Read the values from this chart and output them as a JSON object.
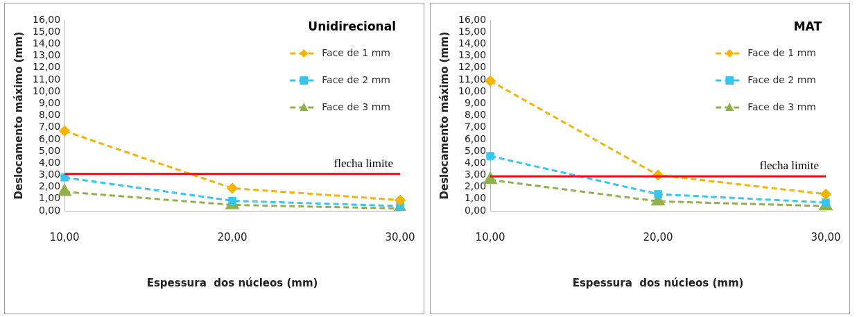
{
  "chart_data": [
    {
      "type": "line",
      "title": "Unidirecional",
      "xlabel": "Espessura  dos núcleos (mm)",
      "ylabel": "Deslocamento máximo (mm)",
      "categories": [
        "10,00",
        "20,00",
        "30,00"
      ],
      "series": [
        {
          "name": "Face de 1 mm",
          "color": "#f5b400",
          "marker": "diamond",
          "values": [
            6.7,
            1.9,
            0.9
          ]
        },
        {
          "name": "Face de 2 mm",
          "color": "#33c6f0",
          "marker": "square",
          "values": [
            2.8,
            0.85,
            0.4
          ]
        },
        {
          "name": "Face de 3 mm",
          "color": "#8fb04a",
          "marker": "triangle",
          "values": [
            1.6,
            0.5,
            0.2
          ]
        }
      ],
      "ylim": [
        0,
        16
      ],
      "yticks": [
        {
          "value": 0,
          "label": "0,00"
        },
        {
          "value": 1,
          "label": "1,00"
        },
        {
          "value": 2,
          "label": "2,00"
        },
        {
          "value": 3,
          "label": "3,00"
        },
        {
          "value": 4,
          "label": "4,00"
        },
        {
          "value": 5,
          "label": "5,00"
        },
        {
          "value": 6,
          "label": "6,00"
        },
        {
          "value": 7,
          "label": "7,00"
        },
        {
          "value": 8,
          "label": "8,00"
        },
        {
          "value": 9,
          "label": "9,00"
        },
        {
          "value": 10,
          "label": "10,00"
        },
        {
          "value": 11,
          "label": "11,00"
        },
        {
          "value": 12,
          "label": "12,00"
        },
        {
          "value": 13,
          "label": "13,00"
        },
        {
          "value": 14,
          "label": "14,00"
        },
        {
          "value": 15,
          "label": "15,00"
        },
        {
          "value": 16,
          "label": "16,00"
        }
      ],
      "ref_lines": [
        {
          "axis": "y",
          "value": 3.1,
          "label": "flecha limite",
          "color": "#ff0000"
        }
      ],
      "line_style": "dashed",
      "grid": false,
      "legend": "top right"
    },
    {
      "type": "line",
      "title": "MAT",
      "xlabel": "Espessura  dos núcleos (mm)",
      "ylabel": "Deslocamento máximo (mm)",
      "categories": [
        "10,00",
        "20,00",
        "30,00"
      ],
      "series": [
        {
          "name": "Face de 1 mm",
          "color": "#f5b400",
          "marker": "diamond",
          "values": [
            10.9,
            3.0,
            1.4
          ]
        },
        {
          "name": "Face de 2 mm",
          "color": "#33c6f0",
          "marker": "square",
          "values": [
            4.6,
            1.4,
            0.7
          ]
        },
        {
          "name": "Face de 3 mm",
          "color": "#8fb04a",
          "marker": "triangle",
          "values": [
            2.6,
            0.8,
            0.4
          ]
        }
      ],
      "ylim": [
        0,
        16
      ],
      "yticks": [
        {
          "value": 0,
          "label": "0,00"
        },
        {
          "value": 1,
          "label": "1,00"
        },
        {
          "value": 2,
          "label": "2,00"
        },
        {
          "value": 3,
          "label": "3,00"
        },
        {
          "value": 4,
          "label": "4,00"
        },
        {
          "value": 5,
          "label": "5,00"
        },
        {
          "value": 6,
          "label": "6,00"
        },
        {
          "value": 7,
          "label": "7,00"
        },
        {
          "value": 8,
          "label": "8,00"
        },
        {
          "value": 9,
          "label": "9,00"
        },
        {
          "value": 10,
          "label": "10,00"
        },
        {
          "value": 11,
          "label": "11,00"
        },
        {
          "value": 12,
          "label": "12,00"
        },
        {
          "value": 13,
          "label": "13,00"
        },
        {
          "value": 14,
          "label": "14,00"
        },
        {
          "value": 15,
          "label": "15,00"
        },
        {
          "value": 16,
          "label": "16,00"
        }
      ],
      "ref_lines": [
        {
          "axis": "y",
          "value": 2.9,
          "label": "flecha limite",
          "color": "#ff0000"
        }
      ],
      "line_style": "dashed",
      "grid": false,
      "legend": "top right"
    }
  ]
}
